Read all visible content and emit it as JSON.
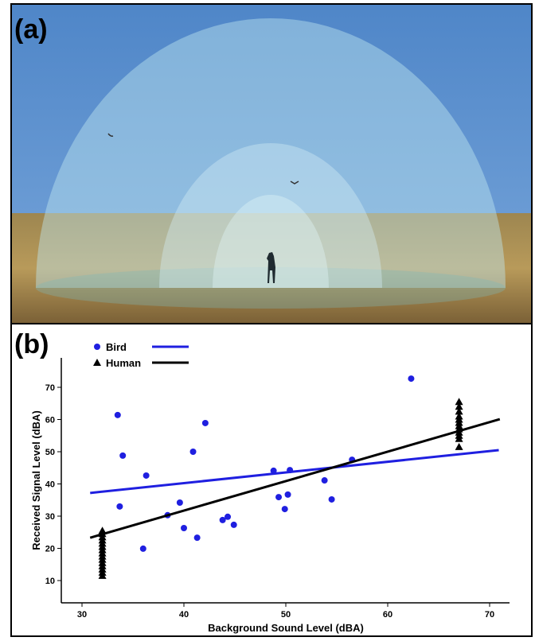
{
  "panel_labels": [
    "(a)",
    "(b)"
  ],
  "chart_data": {
    "type": "scatter",
    "x_label": "Background Sound Level (dBA)",
    "y_label": "Received Signal Level (dBA)",
    "xlim": [
      28,
      73
    ],
    "ylim": [
      3,
      79
    ],
    "xticks": [
      30,
      40,
      50,
      60,
      70
    ],
    "yticks": [
      10,
      20,
      30,
      40,
      50,
      60,
      70
    ],
    "series": [
      {
        "name": "Bird",
        "color": "#1f1fe0",
        "marker": "circle",
        "x": [
          33.5,
          34.0,
          33.7,
          36.3,
          36.0,
          38.4,
          39.6,
          40.0,
          40.9,
          41.3,
          42.1,
          43.8,
          44.3,
          44.9,
          48.8,
          49.3,
          49.9,
          50.2,
          50.4,
          53.8,
          54.5,
          56.5,
          62.3
        ],
        "values": [
          61.4,
          48.8,
          33.0,
          42.6,
          19.9,
          30.3,
          34.2,
          26.3,
          50.0,
          23.3,
          58.9,
          28.8,
          29.8,
          27.3,
          44.1,
          35.9,
          32.2,
          36.7,
          44.3,
          41.1,
          35.2,
          47.5,
          72.7
        ],
        "fit": {
          "x": [
            30.8,
            70.9
          ],
          "values": [
            37.2,
            50.5
          ]
        }
      },
      {
        "name": "Human",
        "color": "#000000",
        "marker": "triangle",
        "x": [
          32,
          32,
          32,
          32,
          32,
          32,
          32,
          32,
          32,
          32,
          32,
          32,
          32,
          32,
          32,
          67,
          67,
          67,
          67,
          67,
          67,
          67,
          67,
          67,
          67,
          67,
          67
        ],
        "values": [
          25.5,
          24.5,
          23.5,
          22.5,
          21.5,
          20.5,
          19.5,
          18.5,
          17.5,
          16.5,
          15.5,
          14.5,
          13.5,
          12.5,
          11.5,
          65.5,
          64,
          62.5,
          61,
          60,
          59,
          58,
          57,
          56,
          55,
          54,
          51.5
        ],
        "fit": {
          "x": [
            30.8,
            71.0
          ],
          "values": [
            23.3,
            60.1
          ]
        }
      }
    ]
  }
}
